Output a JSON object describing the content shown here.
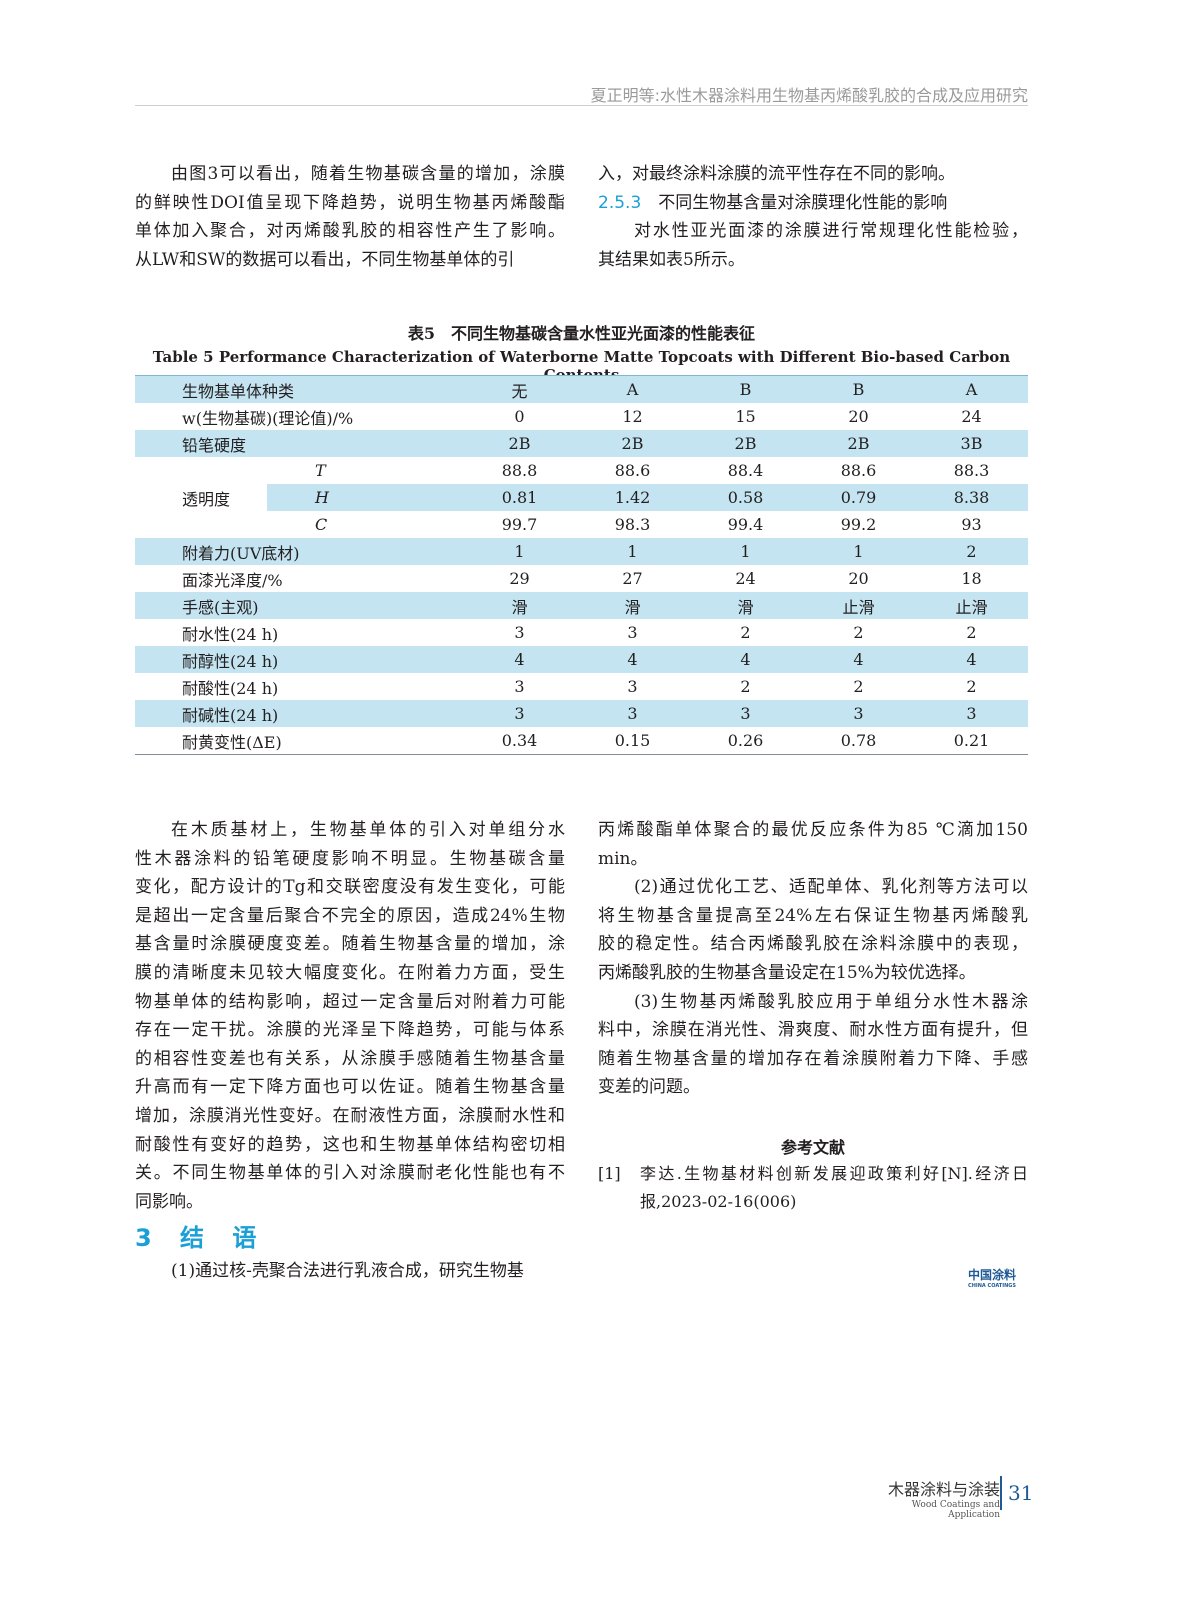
{
  "header": {
    "running_title": "夏正明等:水性木器涂料用生物基丙烯酸乳胶的合成及应用研究"
  },
  "top_left": [
    {
      "lines": [
        "由图3可以看出，随着生物基碳含量的增加，涂膜",
        "的鲜映性DOI值呈现下降趋势，说明生物基丙烯酸酯",
        "单体加入聚合，对丙烯酸乳胶的相容性产生了影响。",
        "从LW和SW的数据可以看出，不同生物基单体的引"
      ],
      "indent_first": true
    }
  ],
  "top_right": {
    "cont": "入，对最终涂料涂膜的流平性存在不同的影响。",
    "section_num": "2.5.3",
    "section_title": "不同生物基含量对涂膜理化性能的影响",
    "para": [
      "对水性亚光面漆的涂膜进行常规理化性能检验，",
      "其结果如表5所示。"
    ]
  },
  "table": {
    "caption_cn": "表5　不同生物基碳含量水性亚光面漆的性能表征",
    "caption_en": "Table 5   Performance Characterization of Waterborne Matte Topcoats with Different Bio-based Carbon Contents",
    "rows": [
      {
        "label": "生物基单体种类",
        "values": [
          "无",
          "A",
          "B",
          "B",
          "A"
        ]
      },
      {
        "label": "w(生物基碳)(理论值)/%",
        "values": [
          "0",
          "12",
          "15",
          "20",
          "24"
        ]
      },
      {
        "label": "铅笔硬度",
        "values": [
          "2B",
          "2B",
          "2B",
          "2B",
          "3B"
        ]
      },
      {
        "group": "透明度",
        "sub": "T",
        "values": [
          "88.8",
          "88.6",
          "88.4",
          "88.6",
          "88.3"
        ]
      },
      {
        "sub": "H",
        "values": [
          "0.81",
          "1.42",
          "0.58",
          "0.79",
          "8.38"
        ]
      },
      {
        "sub": "C",
        "values": [
          "99.7",
          "98.3",
          "99.4",
          "99.2",
          "93"
        ]
      },
      {
        "label": "附着力(UV底材)",
        "values": [
          "1",
          "1",
          "1",
          "1",
          "2"
        ]
      },
      {
        "label": "面漆光泽度/%",
        "values": [
          "29",
          "27",
          "24",
          "20",
          "18"
        ]
      },
      {
        "label": "手感(主观)",
        "values": [
          "滑",
          "滑",
          "滑",
          "止滑",
          "止滑"
        ]
      },
      {
        "label": "耐水性(24 h)",
        "values": [
          "3",
          "3",
          "2",
          "2",
          "2"
        ]
      },
      {
        "label": "耐醇性(24 h)",
        "values": [
          "4",
          "4",
          "4",
          "4",
          "4"
        ]
      },
      {
        "label": "耐酸性(24 h)",
        "values": [
          "3",
          "3",
          "2",
          "2",
          "2"
        ]
      },
      {
        "label": "耐碱性(24 h)",
        "values": [
          "3",
          "3",
          "3",
          "3",
          "3"
        ]
      },
      {
        "label": "耐黄变性(ΔE)",
        "values": [
          "0.34",
          "0.15",
          "0.26",
          "0.78",
          "0.21"
        ]
      }
    ],
    "shade_color": "#c3e4f0"
  },
  "bottom_left": {
    "para": [
      "在木质基材上，生物基单体的引入对单组分水",
      "性木器涂料的铅笔硬度影响不明显。生物基碳含量",
      "变化，配方设计的Tg和交联密度没有发生变化，可能",
      "是超出一定含量后聚合不完全的原因，造成24%生物",
      "基含量时涂膜硬度变差。随着生物基含量的增加，涂",
      "膜的清晰度未见较大幅度变化。在附着力方面，受生",
      "物基单体的结构影响，超过一定含量后对附着力可能",
      "存在一定干扰。涂膜的光泽呈下降趋势，可能与体系",
      "的相容性变差也有关系，从涂膜手感随着生物基含量",
      "升高而有一定下降方面也可以佐证。随着生物基含量",
      "增加，涂膜消光性变好。在耐液性方面，涂膜耐水性和",
      "耐酸性有变好的趋势，这也和生物基单体结构密切相",
      "关。不同生物基单体的引入对涂膜耐老化性能也有不",
      "同影响。"
    ],
    "heading": "3 结 语",
    "conc1": "(1)通过核-壳聚合法进行乳液合成，研究生物基"
  },
  "bottom_right": {
    "p1": [
      "丙烯酸酯单体聚合的最优反应条件为85 ℃滴加150",
      "min。"
    ],
    "p2": [
      "(2)通过优化工艺、适配单体、乳化剂等方法可以",
      "将生物基含量提高至24%左右保证生物基丙烯酸乳",
      "胶的稳定性。结合丙烯酸乳胶在涂料涂膜中的表现，",
      "丙烯酸乳胶的生物基含量设定在15%为较优选择。"
    ],
    "p3": [
      "(3)生物基丙烯酸乳胶应用于单组分水性木器涂",
      "料中，涂膜在消光性、滑爽度、耐水性方面有提升，但",
      "随着生物基含量的增加存在着涂膜附着力下降、手感",
      "变差的问题。"
    ]
  },
  "references": {
    "heading": "参考文献",
    "items": [
      {
        "num": "[1]",
        "lines": [
          "李达.生物基材料创新发展迎政策利好[N].经济日",
          "报,2023-02-16(006)"
        ]
      }
    ]
  },
  "logo": {
    "cn": "中国涂料",
    "en": "CHINA COATINGS"
  },
  "footer": {
    "journal_cn": "木器涂料与涂装",
    "journal_en": "Wood Coatings and Application",
    "page": "31",
    "accent": "#1f5a95"
  }
}
